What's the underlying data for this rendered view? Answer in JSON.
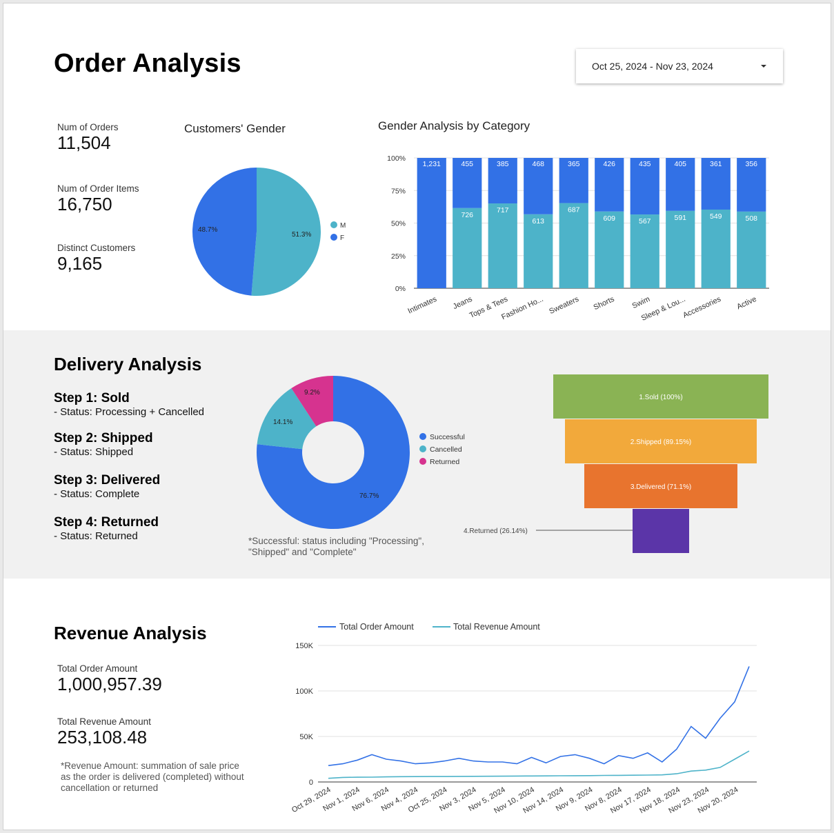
{
  "header": {
    "title": "Order Analysis",
    "date_range": "Oct 25, 2024 - Nov 23, 2024",
    "dropdown_icon": "caret-down-icon"
  },
  "kpis_order": [
    {
      "label": "Num of Orders",
      "value": "11,504"
    },
    {
      "label": "Num of Order Items",
      "value": "16,750"
    },
    {
      "label": "Distinct Customers",
      "value": "9,165"
    }
  ],
  "colors": {
    "blue": "#3271e6",
    "teal": "#4db3c9",
    "magenta": "#d6338f",
    "green": "#8ab354",
    "orange": "#f2a93b",
    "dark_orange": "#e8742e",
    "purple": "#5b35a8"
  },
  "charts": {
    "gender_pie": {
      "title": "Customers' Gender",
      "legend": [
        "M",
        "F"
      ],
      "labels": [
        "51.3%",
        "48.7%"
      ]
    },
    "gender_by_category": {
      "title": "Gender Analysis by Category",
      "yticks": [
        "100%",
        "75%",
        "50%",
        "25%",
        "0%"
      ],
      "categories": [
        "Intimates",
        "Jeans",
        "Tops & Tees",
        "Fashion Ho...",
        "Sweaters",
        "Shorts",
        "Swim",
        "Sleep & Lou...",
        "Accessories",
        "Active"
      ],
      "top_labels": [
        "1,231",
        "455",
        "385",
        "468",
        "365",
        "426",
        "435",
        "405",
        "361",
        "356"
      ],
      "bottom_labels": [
        "",
        "726",
        "717",
        "613",
        "687",
        "609",
        "567",
        "591",
        "549",
        "508"
      ]
    },
    "delivery_donut": {
      "legend": [
        "Successful",
        "Cancelled",
        "Returned"
      ],
      "labels": [
        "76.7%",
        "14.1%",
        "9.2%"
      ]
    },
    "funnel": {
      "labels": [
        "1.Sold (100%)",
        "2.Shipped (89.15%)",
        "3.Delivered (71.1%)",
        "4.Returned (26.14%)"
      ]
    },
    "revenue_line": {
      "legend": [
        "Total Order Amount",
        "Total Revenue Amount"
      ],
      "yticks": [
        "150K",
        "100K",
        "50K",
        "0"
      ],
      "xticks": [
        "Oct 29, 2024",
        "Nov 1, 2024",
        "Nov 6, 2024",
        "Nov 4, 2024",
        "Oct 25, 2024",
        "Nov 3, 2024",
        "Nov 5, 2024",
        "Nov 10, 2024",
        "Nov 14, 2024",
        "Nov 9, 2024",
        "Nov 8, 2024",
        "Nov 17, 2024",
        "Nov 18, 2024",
        "Nov 23, 2024",
        "Nov 20, 2024"
      ]
    }
  },
  "chart_data": [
    {
      "type": "pie",
      "title": "Customers' Gender",
      "categories": [
        "M",
        "F"
      ],
      "values": [
        51.3,
        48.7
      ]
    },
    {
      "type": "bar",
      "title": "Gender Analysis by Category",
      "stacked": "percent",
      "categories": [
        "Intimates",
        "Jeans",
        "Tops & Tees",
        "Fashion Ho...",
        "Sweaters",
        "Shorts",
        "Swim",
        "Sleep & Lou...",
        "Accessories",
        "Active"
      ],
      "series": [
        {
          "values": [
            0,
            726,
            717,
            613,
            687,
            609,
            567,
            591,
            549,
            508
          ]
        },
        {
          "values": [
            1231,
            455,
            385,
            468,
            365,
            426,
            435,
            405,
            361,
            356
          ]
        }
      ],
      "ylim": [
        0,
        100
      ]
    },
    {
      "type": "pie",
      "donut": true,
      "categories": [
        "Successful",
        "Cancelled",
        "Returned"
      ],
      "values": [
        76.7,
        14.1,
        9.2
      ]
    },
    {
      "type": "bar",
      "funnel": true,
      "categories": [
        "1.Sold",
        "2.Shipped",
        "3.Delivered",
        "4.Returned"
      ],
      "values": [
        100,
        89.15,
        71.1,
        26.14
      ]
    },
    {
      "type": "line",
      "series": [
        {
          "name": "Total Order Amount",
          "values": [
            18000,
            20000,
            24000,
            30000,
            25000,
            23000,
            20000,
            21000,
            23000,
            26000,
            23000,
            22000,
            22000,
            20000,
            27000,
            21000,
            28000,
            30000,
            26000,
            20000,
            29000,
            26000,
            32000,
            22000,
            36000,
            61000,
            48000,
            70000,
            88000,
            127000
          ]
        },
        {
          "name": "Total Revenue Amount",
          "values": [
            4000,
            5000,
            5200,
            5300,
            5600,
            5800,
            5900,
            6000,
            6000,
            6100,
            6200,
            6300,
            6400,
            6500,
            6600,
            6700,
            6800,
            6900,
            7000,
            7200,
            7300,
            7400,
            7600,
            7800,
            9000,
            12000,
            13000,
            16000,
            25000,
            34000
          ]
        }
      ],
      "ylim": [
        0,
        150000
      ]
    }
  ],
  "delivery": {
    "title": "Delivery Analysis",
    "steps": [
      {
        "title": "Step 1: Sold",
        "desc": "- Status: Processing + Cancelled"
      },
      {
        "title": "Step 2: Shipped",
        "desc": "- Status: Shipped"
      },
      {
        "title": "Step 3: Delivered",
        "desc": "-  Status: Complete"
      },
      {
        "title": "Step 4: Returned",
        "desc": "- Status: Returned"
      }
    ],
    "note": "*Successful: status including \"Processing\", \"Shipped\" and \"Complete\""
  },
  "revenue": {
    "title": "Revenue Analysis",
    "kpis": [
      {
        "label": "Total Order Amount",
        "value": "1,000,957.39"
      },
      {
        "label": "Total Revenue Amount",
        "value": "253,108.48"
      }
    ],
    "note": "*Revenue Amount: summation of sale price as the order is delivered (completed) without cancellation or returned"
  }
}
